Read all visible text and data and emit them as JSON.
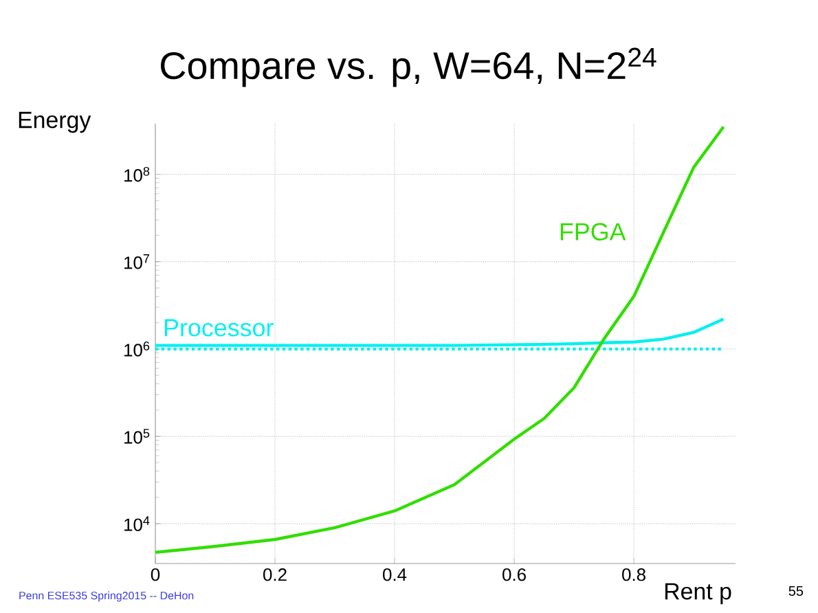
{
  "chart_data": {
    "type": "line",
    "title": "Compare vs. p, W=64, N=2$^{24}$",
    "xlabel": "Rent p",
    "ylabel": "Energy",
    "x": [
      0,
      0.1,
      0.2,
      0.3,
      0.4,
      0.5,
      0.6,
      0.65,
      0.7,
      0.75,
      0.8,
      0.85,
      0.9,
      0.95
    ],
    "series": [
      {
        "name": "Processor",
        "color": "#00f0f0",
        "line_style": "solid",
        "values": [
          1100000,
          1100000,
          1100000,
          1100000,
          1100000,
          1100000,
          1120000,
          1130000,
          1150000,
          1180000,
          1200000,
          1300000,
          1550000,
          2200000
        ]
      },
      {
        "color": "#00f0f0",
        "line_style": "dotted",
        "values": [
          1000000,
          1000000,
          1000000,
          1000000,
          1000000,
          1000000,
          1000000,
          1000000,
          1000000,
          1000000,
          1000000,
          1000000,
          1000000,
          1000000
        ]
      },
      {
        "name": "FPGA",
        "color": "#33dd00",
        "line_style": "solid",
        "values": [
          4700,
          5500,
          6600,
          9000,
          14000,
          28000,
          93000,
          160000,
          360000,
          1300000,
          4000000,
          22000000,
          120000000,
          350000000
        ]
      }
    ],
    "log": "y",
    "xlim": [
      0,
      0.97
    ],
    "ylim": [
      3500,
      380000000
    ],
    "xticks": [
      0,
      0.2,
      0.4,
      0.6,
      0.8
    ],
    "yticks": [
      {
        "value": 10000,
        "label": "10$^{4}$"
      },
      {
        "value": 100000,
        "label": "10$^{5}$"
      },
      {
        "value": 1000000,
        "label": "10$^{6}$"
      },
      {
        "value": 10000000,
        "label": "10$^{7}$"
      },
      {
        "value": 100000000,
        "label": "10$^{8}$"
      }
    ],
    "grid": true,
    "marker": "none",
    "annotations": [
      "Penn ESE535 Spring2015 -- DeHon",
      "55"
    ]
  }
}
